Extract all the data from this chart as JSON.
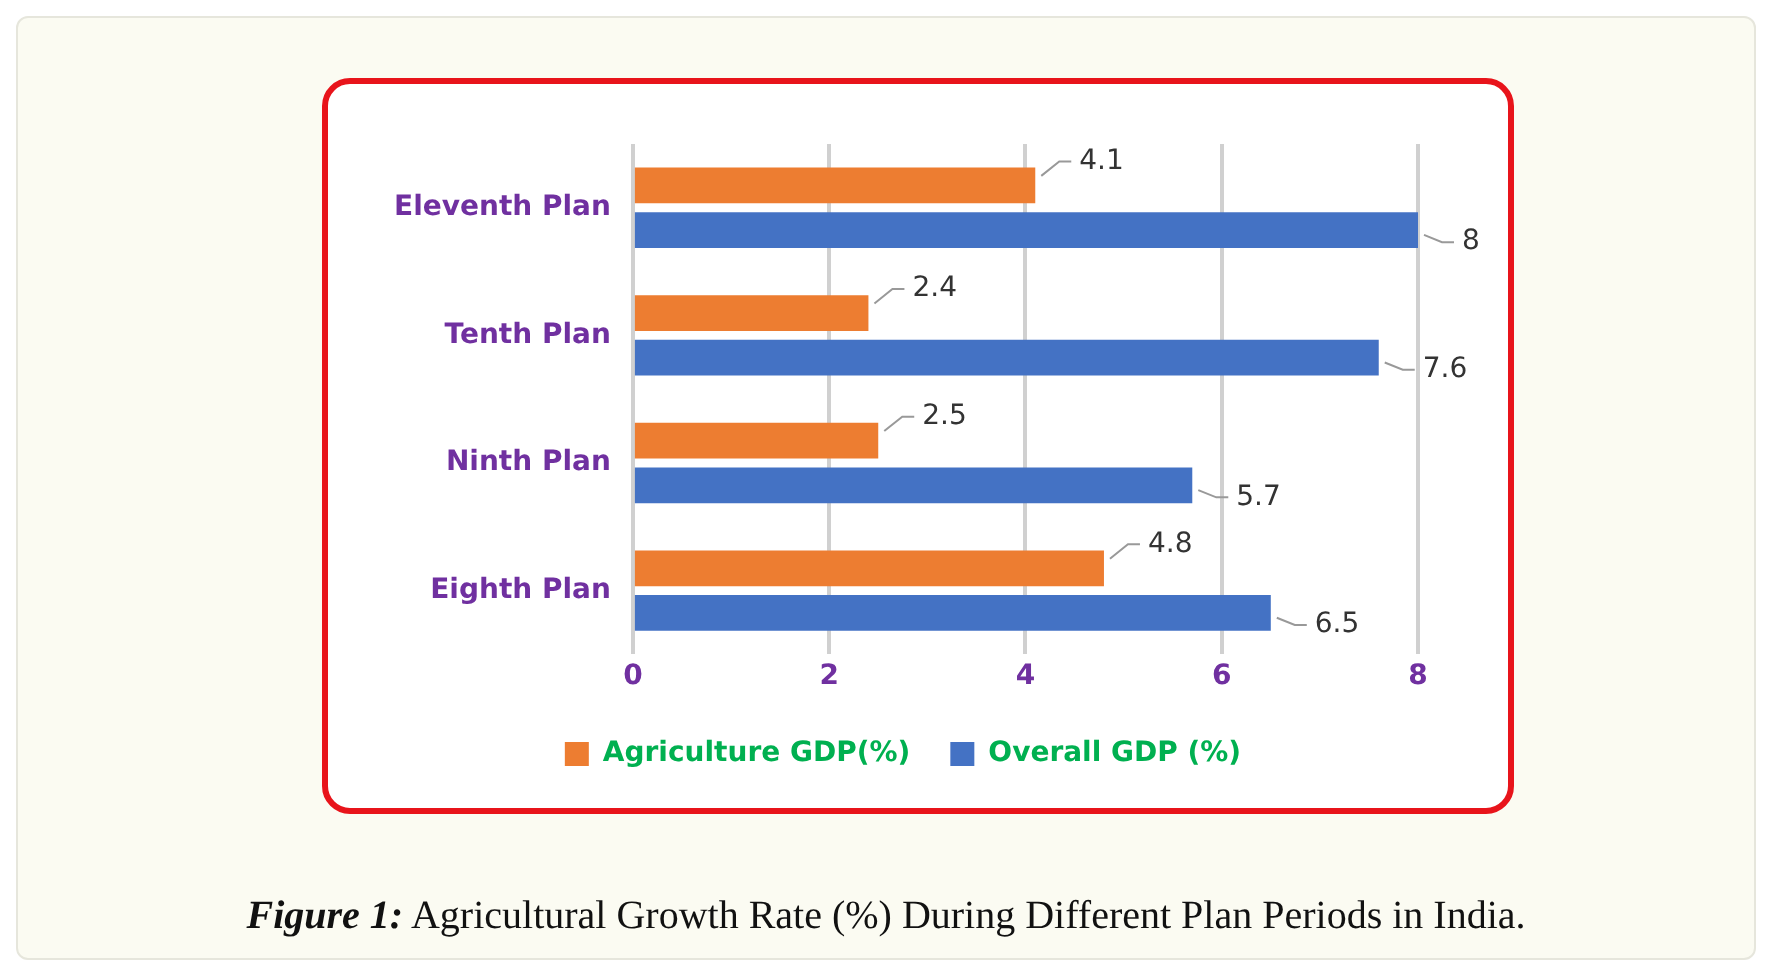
{
  "chart_data": {
    "type": "bar",
    "orientation": "horizontal",
    "categories": [
      "Eleventh Plan",
      "Tenth Plan",
      "Ninth Plan",
      "Eighth Plan"
    ],
    "series": [
      {
        "name": "Agriculture GDP(%)",
        "color": "#ed7d31",
        "values": [
          4.1,
          2.4,
          2.5,
          4.8
        ]
      },
      {
        "name": "Overall GDP (%)",
        "color": "#4472c4",
        "values": [
          8,
          7.6,
          5.7,
          6.5
        ]
      }
    ],
    "xlim": [
      0,
      8
    ],
    "xticks": [
      0,
      2,
      4,
      6,
      8
    ],
    "grid": "x",
    "legend": "bottom",
    "data_labels": true,
    "annotations": [
      "Figure 1: Agricultural Growth Rate (%) During Different Plan Periods in India."
    ]
  }
}
